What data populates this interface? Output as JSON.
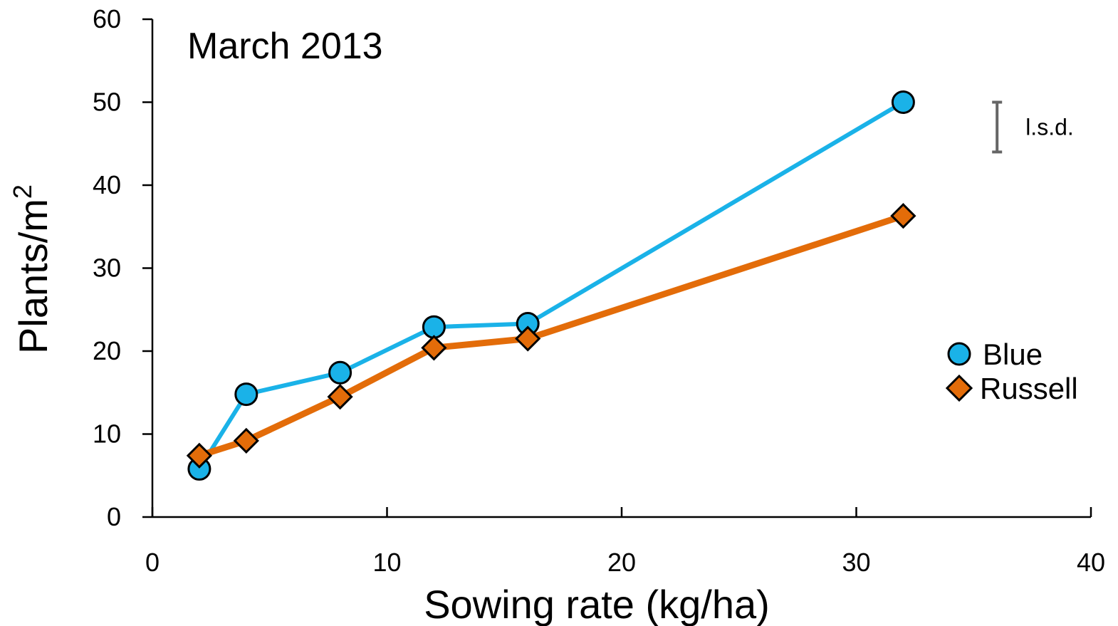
{
  "chart_data": {
    "type": "line",
    "title": "March 2013",
    "xlabel": "Sowing rate (kg/ha)",
    "ylabel": "Plants/m",
    "ylabel_sup": "2",
    "xlim": [
      0,
      40
    ],
    "ylim": [
      0,
      60
    ],
    "xticks": [
      0,
      10,
      20,
      30,
      40
    ],
    "yticks": [
      0,
      10,
      20,
      30,
      40,
      50,
      60
    ],
    "grid": false,
    "legend_position": "right",
    "series": [
      {
        "name": "Blue",
        "marker": "circle",
        "color": "#1AB2E8",
        "x": [
          2,
          4,
          8,
          12,
          16,
          32
        ],
        "y": [
          5.8,
          14.8,
          17.4,
          22.9,
          23.3,
          50.0
        ]
      },
      {
        "name": "Russell",
        "marker": "diamond",
        "color": "#E36C09",
        "x": [
          2,
          4,
          8,
          12,
          16,
          32
        ],
        "y": [
          7.4,
          9.2,
          14.5,
          20.4,
          21.5,
          36.3
        ]
      }
    ],
    "lsd": {
      "label": "l.s.d.",
      "x": 36,
      "y_center": 47,
      "value": 6
    }
  }
}
